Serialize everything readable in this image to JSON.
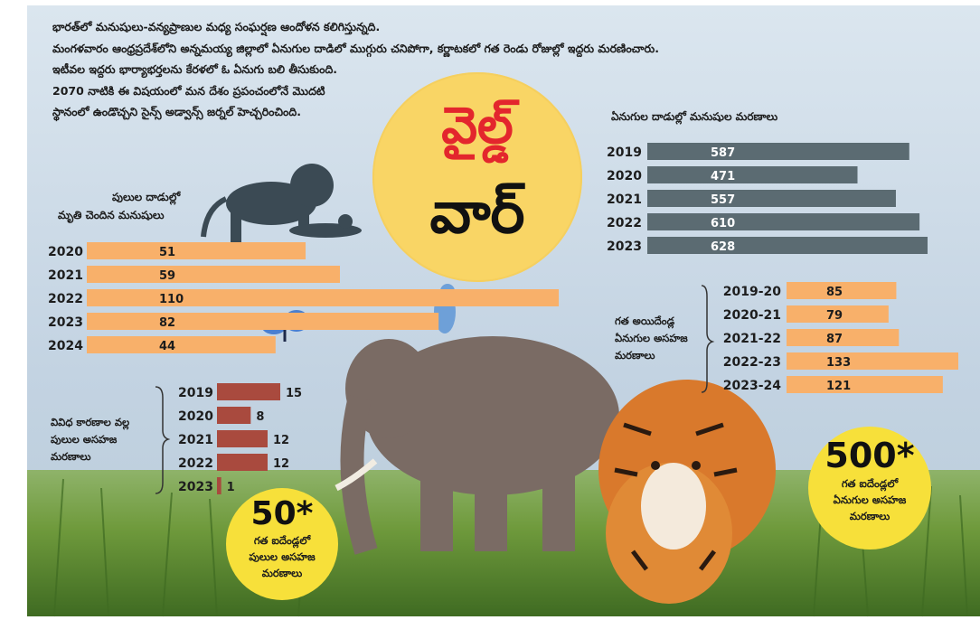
{
  "intro": {
    "lines": [
      "భారత్‌లో మనుషులు-వన్యప్రాణుల మధ్య సంఘర్షణ ఆందోళన కలిగిస్తున్నది.",
      "మంగళవారం ఆంధ్రప్రదేశ్‌లోని అన్నమయ్య జిల్లాలో ఏనుగుల దాడిలో ముగ్గురు చనిపోగా, కర్ణాటకలో గత రెండు రోజుల్లో ఇద్దరు మరణించారు.",
      "ఇటీవల ఇద్దరు భార్యాభర్తలను కేరళలో ఓ ఏనుగు బలి తీసుకుంది.",
      "2070 నాటికి ఈ విషయంలో మన దేశం ప్రపంచంలోనే మొదటి",
      "స్థానంలో ఉండొచ్చని సైన్స్ అడ్వాన్స్ జర్నల్ హెచ్చరించింది."
    ]
  },
  "title": {
    "line1": "వైల్డ్",
    "line2": "వార్"
  },
  "badges": {
    "tiger": {
      "number": "50*",
      "text": [
        "గత ఐదేండ్లలో",
        "పులుల అసహజ",
        "మరణాలు"
      ]
    },
    "elephant": {
      "number": "500*",
      "text": [
        "గత ఐదేండ్లలో",
        "ఏనుగుల అసహజ",
        "మరణాలు"
      ]
    }
  },
  "colors": {
    "background_sky": "#c8d8e6",
    "grass": "#6f9a3c",
    "orange_bar": "#f8b06a",
    "slate_bar": "#5b6b72",
    "brown_bar": "#a94a3e",
    "title_circle": "#f9d565",
    "title_red": "#e3262d",
    "badge_yellow": "#f7e03a"
  },
  "chart_data": [
    {
      "type": "bar",
      "orientation": "horizontal",
      "title": "పులుల దాడుల్లో మృతి చెందిన మనుషులు",
      "title_lines": [
        "పులుల దాడుల్లో",
        "మృతి చెందిన మనుషులు"
      ],
      "categories": [
        "2020",
        "2021",
        "2022",
        "2023",
        "2024"
      ],
      "values": [
        51,
        59,
        110,
        82,
        44
      ],
      "color": "#f8b06a"
    },
    {
      "type": "bar",
      "orientation": "horizontal",
      "title": "ఏనుగుల దాడుల్లో మనుషుల మరణాలు",
      "categories": [
        "2019",
        "2020",
        "2021",
        "2022",
        "2023"
      ],
      "values": [
        587,
        471,
        557,
        610,
        628
      ],
      "color": "#5b6b72"
    },
    {
      "type": "bar",
      "orientation": "horizontal",
      "title": "వివిధ కారణాల వల్ల పులుల అసహజ మరణాలు",
      "title_lines": [
        "వివిధ కారణాల వల్ల",
        "పులుల అసహజ",
        "మరణాలు"
      ],
      "categories": [
        "2019",
        "2020",
        "2021",
        "2022",
        "2023"
      ],
      "values": [
        15,
        8,
        12,
        12,
        1
      ],
      "color": "#a94a3e"
    },
    {
      "type": "bar",
      "orientation": "horizontal",
      "title": "గత అయిదేండ్ల ఏనుగుల అసహజ మరణాలు",
      "title_lines": [
        "గత అయిదేండ్ల",
        "ఏనుగుల అసహజ",
        "మరణాలు"
      ],
      "categories": [
        "2019-20",
        "2020-21",
        "2021-22",
        "2022-23",
        "2023-24"
      ],
      "values": [
        85,
        79,
        87,
        133,
        121
      ],
      "color": "#f8b06a"
    }
  ]
}
